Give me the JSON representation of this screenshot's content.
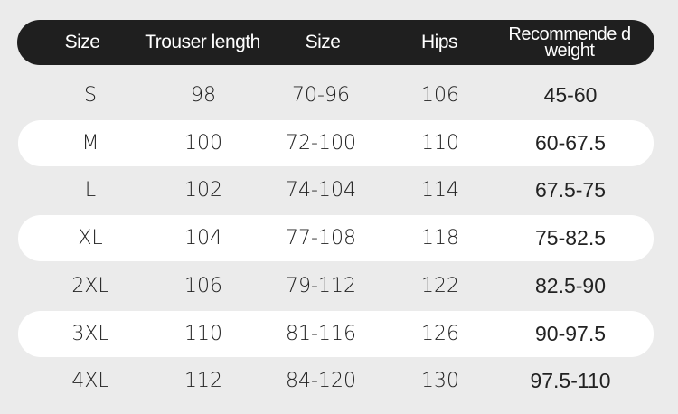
{
  "headers": [
    "Size",
    "Trouser length",
    "Size",
    "Hips",
    "Recommende d weight"
  ],
  "rows": [
    [
      "S",
      "98",
      "70-96",
      "106",
      "45-60"
    ],
    [
      "M",
      "100",
      "72-100",
      "110",
      "60-67.5"
    ],
    [
      "L",
      "102",
      "74-104",
      "114",
      "67.5-75"
    ],
    [
      "XL",
      "104",
      "77-108",
      "118",
      "75-82.5"
    ],
    [
      "2XL",
      "106",
      "79-112",
      "122",
      "82.5-90"
    ],
    [
      "3XL",
      "110",
      "81-116",
      "126",
      "90-97.5"
    ],
    [
      "4XL",
      "112",
      "84-120",
      "130",
      "97.5-110"
    ]
  ],
  "colors": {
    "header_bg": "#1f1f1f",
    "header_text": "#ffffff",
    "stripe": "#ffffff",
    "background": "#ebebeb"
  }
}
